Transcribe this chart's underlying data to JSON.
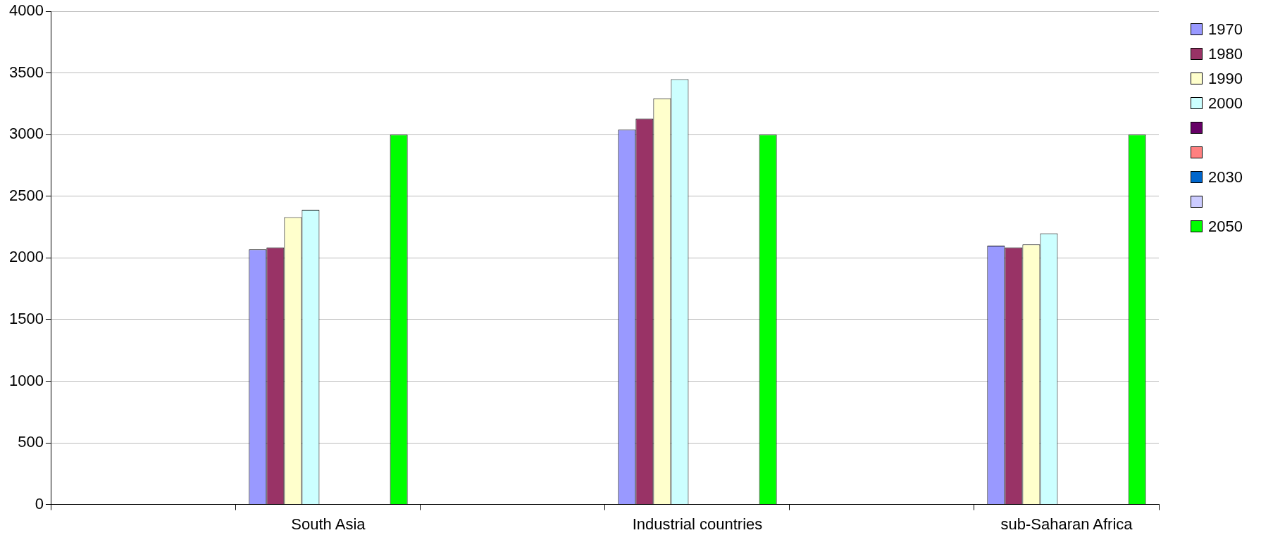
{
  "chart_data": {
    "type": "bar",
    "categories": [
      null,
      "South Asia",
      null,
      "Industrial countries",
      null,
      "sub-Saharan Africa"
    ],
    "series": [
      {
        "name": "1970",
        "color": "#9999ff",
        "values": [
          null,
          2070,
          null,
          3040,
          null,
          2100
        ]
      },
      {
        "name": "1980",
        "color": "#993366",
        "values": [
          null,
          2085,
          null,
          3130,
          null,
          2085
        ]
      },
      {
        "name": "1990",
        "color": "#ffffcc",
        "values": [
          null,
          2330,
          null,
          3295,
          null,
          2110
        ]
      },
      {
        "name": "2000",
        "color": "#ccffff",
        "values": [
          null,
          2390,
          null,
          3450,
          null,
          2200
        ]
      },
      {
        "color": "#660066",
        "values": [
          null,
          null,
          null,
          null,
          null,
          null
        ]
      },
      {
        "color": "#ff8080",
        "values": [
          null,
          null,
          null,
          null,
          null,
          null
        ]
      },
      {
        "name": "2030",
        "color": "#0066cc",
        "values": [
          null,
          null,
          null,
          null,
          null,
          null
        ]
      },
      {
        "color": "#ccccff",
        "values": [
          null,
          null,
          null,
          null,
          null,
          null
        ]
      },
      {
        "name": "2050",
        "color": "#00ff00",
        "values": [
          null,
          3000,
          null,
          3000,
          null,
          3000
        ]
      }
    ],
    "ylim": [
      0,
      4000
    ],
    "yticks": [
      0,
      500,
      1000,
      1500,
      2000,
      2500,
      3000,
      3500,
      4000
    ],
    "grid": "y",
    "legend": "top right"
  }
}
